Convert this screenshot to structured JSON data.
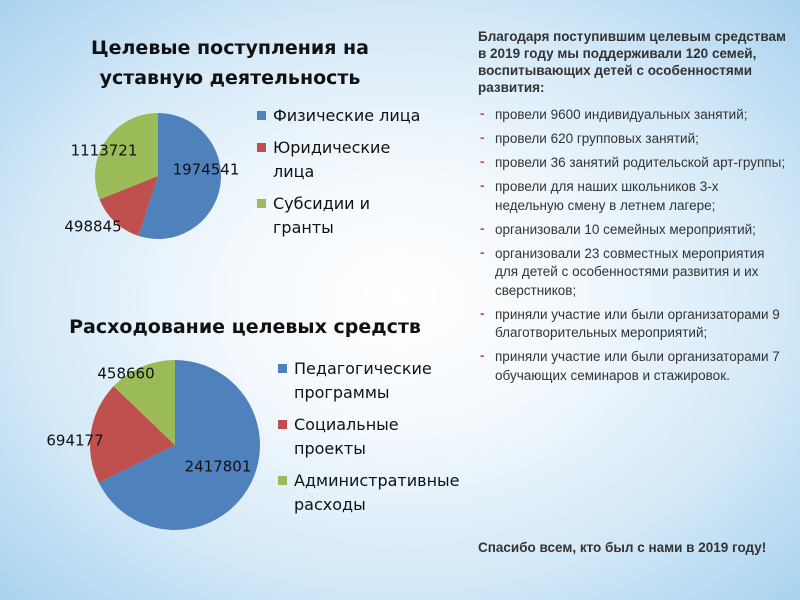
{
  "colors": {
    "blue": "#4f81bd",
    "red": "#c0504d",
    "green": "#9bbb59",
    "dash": "#c0504d"
  },
  "chart_data": [
    {
      "type": "pie",
      "title": "Целевые поступления на\nуставную деятельность",
      "categories": [
        "Физические лица",
        "Юридические\nлица",
        "Субсидии и\nгранты"
      ],
      "values": [
        1974541,
        498845,
        1113721
      ],
      "labels": [
        "1974541",
        "498845",
        "1113721"
      ],
      "colors": [
        "#4f81bd",
        "#c0504d",
        "#9bbb59"
      ],
      "legend_position": "right"
    },
    {
      "type": "pie",
      "title": "Расходование целевых средств",
      "categories": [
        "Педагогические\nпрограммы",
        "Социальные\nпроекты",
        "Административные\nрасходы"
      ],
      "values": [
        2417801,
        694177,
        458660
      ],
      "labels": [
        "2417801",
        "694177",
        "458660"
      ],
      "colors": [
        "#4f81bd",
        "#c0504d",
        "#9bbb59"
      ],
      "legend_position": "right"
    }
  ],
  "text": {
    "intro": "Благодаря поступившим целевым средствам в 2019 году мы поддерживали 120 семей, воспитывающих детей с особенностями развития:",
    "bullets": [
      "провели 9600 индивидуальных занятий;",
      "провели 620 групповых занятий;",
      "провели 36 занятий родительской арт-группы;",
      "провели для наших школьников 3-х недельную смену в летнем лагере;",
      "организовали 10 семейных мероприятий;",
      "организовали 23 совместных мероприятия для детей с особенностями развития и их сверстников;",
      "приняли участие или были организаторами 9 благотворительных мероприятий;",
      "приняли участие или были организаторами  7 обучающих семинаров и стажировок."
    ],
    "bullet_symbol": "-",
    "thanks": "Спасибо всем, кто был с нами в 2019 году!"
  }
}
